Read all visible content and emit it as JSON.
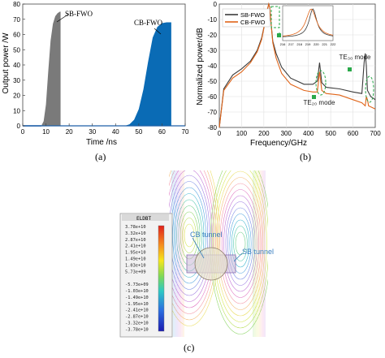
{
  "captions": {
    "a": "(a)",
    "b": "(b)",
    "c": "(c)"
  },
  "chart_data": [
    {
      "type": "area",
      "panel": "a",
      "xlabel": "Time /ns",
      "ylabel": "Output power /W",
      "xlim": [
        0,
        70
      ],
      "ylim": [
        0,
        80
      ],
      "xticks": [
        "0",
        "10",
        "20",
        "30",
        "40",
        "50",
        "60",
        "70"
      ],
      "yticks": [
        "0",
        "10",
        "20",
        "30",
        "40",
        "50",
        "60",
        "70",
        "80"
      ],
      "grid": false,
      "series": [
        {
          "name": "SB-FWO",
          "color": "#7a7a7a",
          "x": [
            8,
            9,
            10,
            11,
            12,
            13,
            14,
            15,
            16,
            16.3
          ],
          "y": [
            0,
            3,
            14,
            36,
            56,
            67,
            72,
            74,
            75,
            75
          ]
        },
        {
          "name": "CB-FWO",
          "color": "#0a6bb5",
          "x": [
            44,
            46,
            48,
            50,
            52,
            54,
            56,
            58,
            60,
            62,
            64
          ],
          "y": [
            0,
            1,
            4,
            11,
            24,
            42,
            58,
            65,
            67.5,
            68,
            68
          ]
        }
      ],
      "annotations": [
        "SB-FWO",
        "CB-FWO"
      ]
    },
    {
      "type": "line",
      "panel": "b",
      "xlabel": "Frequency/GHz",
      "ylabel": "Normalized power/dB",
      "xlim": [
        0,
        700
      ],
      "ylim": [
        -80,
        0
      ],
      "xticks": [
        "0",
        "100",
        "200",
        "300",
        "400",
        "500",
        "600",
        "700"
      ],
      "yticks": [
        "0",
        "-10",
        "-20",
        "-30",
        "-40",
        "-50",
        "-60",
        "-70",
        "-80"
      ],
      "grid": true,
      "legend": "top-left",
      "series": [
        {
          "name": "SB-FWO",
          "color": "#3b3b3b",
          "x": [
            0,
            20,
            60,
            100,
            140,
            170,
            190,
            205,
            215,
            222,
            226,
            232,
            240,
            255,
            280,
            320,
            380,
            420,
            440,
            450,
            460,
            480,
            540,
            600,
            640,
            650,
            655,
            660,
            665,
            680,
            700
          ],
          "y": [
            -80,
            -55,
            -46,
            -42,
            -37,
            -30,
            -22,
            -12,
            -4,
            0,
            -2,
            -12,
            -24,
            -32,
            -41,
            -48,
            -52,
            -52,
            -50,
            -38,
            -51,
            -54,
            -55,
            -57,
            -58,
            -38,
            -32,
            -40,
            -56,
            -60,
            -62
          ]
        },
        {
          "name": "CB-FWO",
          "color": "#e06418",
          "x": [
            0,
            20,
            60,
            100,
            140,
            170,
            190,
            205,
            215,
            222,
            226,
            232,
            240,
            255,
            280,
            320,
            380,
            420,
            440,
            450,
            460,
            480,
            540,
            600,
            640,
            655,
            660,
            665,
            670,
            700
          ],
          "y": [
            -80,
            -56,
            -48,
            -44,
            -38,
            -31,
            -23,
            -12,
            -4,
            0,
            -2,
            -12,
            -25,
            -35,
            -45,
            -52,
            -56,
            -57,
            -57,
            -44,
            -56,
            -58,
            -59,
            -62,
            -64,
            -66,
            -60,
            -62,
            -66,
            -68
          ]
        }
      ],
      "inset": {
        "xticks": [
          "216",
          "217",
          "218",
          "219",
          "220",
          "221",
          "222"
        ]
      },
      "annotations": {
        "top_right": "TE₃₀ mode",
        "mid": "TE₂₀ mode"
      }
    }
  ],
  "field_map": {
    "legend_title": "ELDBT",
    "legend_values": [
      "3.78e+10",
      "3.32e+10",
      "2.87e+10",
      "2.41e+10",
      "1.95e+10",
      "1.49e+10",
      "1.03e+10",
      "5.73e+09",
      "",
      "-5.73e+09",
      "-1.03e+10",
      "-1.49e+10",
      "-1.95e+10",
      "-2.41e+10",
      "-2.87e+10",
      "-3.32e+10",
      "-3.78e+10"
    ],
    "labels": {
      "cb": "CB tunnel",
      "sb": "SB tunnel"
    },
    "label_color": "#3a7fc0"
  }
}
